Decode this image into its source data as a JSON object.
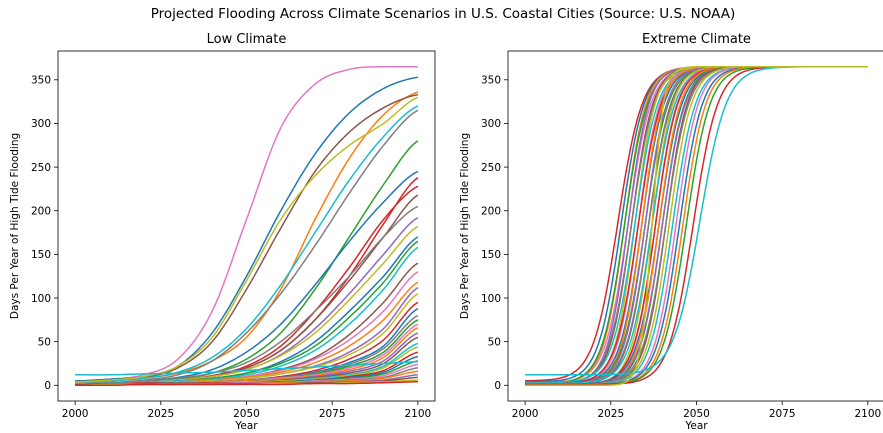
{
  "suptitle": "Projected Flooding Across Climate Scenarios in U.S. Coastal Cities (Source: U.S. NOAA)",
  "chart_data": [
    {
      "type": "line",
      "title": "Low Climate",
      "xlabel": "Year",
      "ylabel": "Days Per Year of High Tide Flooding",
      "xlim": [
        1995,
        2105
      ],
      "ylim": [
        -18,
        383
      ],
      "xticks": [
        2000,
        2025,
        2050,
        2075,
        2100
      ],
      "yticks": [
        0,
        50,
        100,
        150,
        200,
        250,
        300,
        350
      ],
      "grid": false,
      "legend": "none",
      "x": [
        2000,
        2010,
        2020,
        2030,
        2040,
        2050,
        2060,
        2070,
        2080,
        2090,
        2100
      ],
      "series": [
        {
          "color": "#e377c2",
          "values": [
            5,
            7,
            12,
            30,
            85,
            190,
            295,
            345,
            362,
            365,
            365
          ]
        },
        {
          "color": "#1f77b4",
          "values": [
            5,
            7,
            10,
            22,
            60,
            125,
            200,
            265,
            312,
            340,
            353
          ]
        },
        {
          "color": "#ff7f0e",
          "values": [
            3,
            5,
            8,
            14,
            28,
            55,
            110,
            190,
            260,
            310,
            336
          ]
        },
        {
          "color": "#8c564b",
          "values": [
            4,
            6,
            9,
            20,
            50,
            110,
            180,
            245,
            290,
            318,
            333
          ]
        },
        {
          "color": "#17becf",
          "values": [
            3,
            5,
            8,
            15,
            32,
            65,
            115,
            175,
            235,
            285,
            320
          ]
        },
        {
          "color": "#7f7f7f",
          "values": [
            2,
            3,
            6,
            12,
            28,
            60,
            105,
            160,
            220,
            275,
            315
          ]
        },
        {
          "color": "#2ca02c",
          "values": [
            2,
            3,
            4,
            7,
            14,
            30,
            60,
            110,
            170,
            230,
            280
          ]
        },
        {
          "color": "#bcbd22",
          "values": [
            4,
            6,
            10,
            22,
            55,
            120,
            190,
            240,
            275,
            300,
            330
          ]
        },
        {
          "color": "#1f77b4",
          "values": [
            2,
            3,
            5,
            9,
            18,
            38,
            70,
            115,
            165,
            210,
            245
          ]
        },
        {
          "color": "#d62728",
          "values": [
            2,
            3,
            4,
            6,
            10,
            20,
            40,
            75,
            125,
            185,
            238
          ]
        },
        {
          "color": "#d62728",
          "values": [
            2,
            3,
            4,
            6,
            11,
            22,
            45,
            85,
            135,
            190,
            228
          ]
        },
        {
          "color": "#8c564b",
          "values": [
            2,
            3,
            4,
            6,
            10,
            20,
            40,
            75,
            120,
            170,
            218
          ]
        },
        {
          "color": "#7f7f7f",
          "values": [
            2,
            3,
            5,
            8,
            14,
            26,
            50,
            85,
            125,
            170,
            205
          ]
        },
        {
          "color": "#9467bd",
          "values": [
            2,
            3,
            4,
            6,
            10,
            18,
            35,
            65,
            105,
            150,
            192
          ]
        },
        {
          "color": "#bcbd22",
          "values": [
            2,
            3,
            4,
            6,
            10,
            18,
            34,
            60,
            98,
            140,
            182
          ]
        },
        {
          "color": "#1f77b4",
          "values": [
            2,
            3,
            4,
            5,
            8,
            14,
            27,
            50,
            85,
            125,
            170
          ]
        },
        {
          "color": "#2ca02c",
          "values": [
            2,
            3,
            4,
            5,
            8,
            14,
            25,
            45,
            78,
            118,
            165
          ]
        },
        {
          "color": "#17becf",
          "values": [
            2,
            3,
            4,
            5,
            7,
            12,
            22,
            40,
            70,
            110,
            158
          ]
        },
        {
          "color": "#8c564b",
          "values": [
            2,
            2,
            3,
            4,
            6,
            10,
            18,
            32,
            58,
            95,
            140
          ]
        },
        {
          "color": "#e377c2",
          "values": [
            2,
            2,
            3,
            4,
            6,
            10,
            17,
            30,
            52,
            85,
            130
          ]
        },
        {
          "color": "#ff7f0e",
          "values": [
            2,
            2,
            3,
            4,
            6,
            9,
            15,
            26,
            45,
            75,
            118
          ]
        },
        {
          "color": "#9467bd",
          "values": [
            2,
            2,
            3,
            4,
            5,
            8,
            13,
            22,
            38,
            65,
            112
          ]
        },
        {
          "color": "#bcbd22",
          "values": [
            2,
            2,
            3,
            4,
            5,
            8,
            13,
            21,
            35,
            60,
            105
          ]
        },
        {
          "color": "#d62728",
          "values": [
            1,
            2,
            3,
            3,
            4,
            6,
            10,
            17,
            30,
            52,
            95
          ]
        },
        {
          "color": "#1f77b4",
          "values": [
            1,
            2,
            2,
            3,
            4,
            6,
            9,
            15,
            26,
            45,
            88
          ]
        },
        {
          "color": "#7f7f7f",
          "values": [
            1,
            2,
            2,
            3,
            4,
            6,
            9,
            14,
            24,
            42,
            80
          ]
        },
        {
          "color": "#2ca02c",
          "values": [
            1,
            2,
            2,
            3,
            4,
            5,
            8,
            13,
            22,
            38,
            75
          ]
        },
        {
          "color": "#e377c2",
          "values": [
            1,
            2,
            2,
            3,
            4,
            5,
            8,
            12,
            20,
            35,
            70
          ]
        },
        {
          "color": "#ff7f0e",
          "values": [
            1,
            2,
            2,
            3,
            4,
            5,
            7,
            11,
            18,
            32,
            66
          ]
        },
        {
          "color": "#9467bd",
          "values": [
            1,
            2,
            2,
            3,
            3,
            4,
            6,
            10,
            16,
            28,
            60
          ]
        },
        {
          "color": "#8c564b",
          "values": [
            1,
            2,
            2,
            3,
            3,
            4,
            6,
            9,
            14,
            25,
            55
          ]
        },
        {
          "color": "#17becf",
          "values": [
            1,
            1,
            2,
            2,
            3,
            4,
            5,
            8,
            12,
            22,
            48
          ]
        },
        {
          "color": "#bcbd22",
          "values": [
            1,
            1,
            2,
            2,
            3,
            4,
            5,
            7,
            11,
            20,
            44
          ]
        },
        {
          "color": "#d62728",
          "values": [
            1,
            1,
            2,
            2,
            3,
            3,
            4,
            6,
            10,
            17,
            38
          ]
        },
        {
          "color": "#1f77b4",
          "values": [
            1,
            1,
            2,
            2,
            2,
            3,
            4,
            6,
            9,
            15,
            33
          ]
        },
        {
          "color": "#2ca02c",
          "values": [
            1,
            1,
            1,
            2,
            2,
            3,
            4,
            5,
            8,
            13,
            28
          ]
        },
        {
          "color": "#e377c2",
          "values": [
            1,
            1,
            1,
            2,
            2,
            3,
            3,
            5,
            7,
            11,
            24
          ]
        },
        {
          "color": "#7f7f7f",
          "values": [
            1,
            1,
            1,
            2,
            2,
            2,
            3,
            4,
            6,
            9,
            20
          ]
        },
        {
          "color": "#ff7f0e",
          "values": [
            1,
            1,
            1,
            1,
            2,
            2,
            3,
            4,
            5,
            8,
            16
          ]
        },
        {
          "color": "#9467bd",
          "values": [
            1,
            1,
            1,
            1,
            2,
            2,
            2,
            3,
            4,
            6,
            12
          ]
        },
        {
          "color": "#17becf",
          "values": [
            12,
            12,
            13,
            14,
            15,
            17,
            19,
            21,
            23,
            25,
            27
          ]
        },
        {
          "color": "#8c564b",
          "values": [
            1,
            1,
            1,
            1,
            1,
            2,
            2,
            3,
            3,
            5,
            9
          ]
        },
        {
          "color": "#bcbd22",
          "values": [
            0,
            1,
            1,
            1,
            1,
            1,
            2,
            2,
            3,
            4,
            6
          ]
        },
        {
          "color": "#d62728",
          "values": [
            0,
            0,
            1,
            1,
            1,
            1,
            1,
            2,
            2,
            3,
            4
          ]
        }
      ]
    },
    {
      "type": "line",
      "title": "Extreme Climate",
      "xlabel": "Year",
      "ylabel": "Days Per Year of High Tide Flooding",
      "xlim": [
        1995,
        2105
      ],
      "ylim": [
        -18,
        383
      ],
      "xticks": [
        2000,
        2025,
        2050,
        2075,
        2100
      ],
      "yticks": [
        0,
        50,
        100,
        150,
        200,
        250,
        300,
        350
      ],
      "grid": false,
      "legend": "none",
      "x_range": [
        2000,
        2100
      ],
      "series": [
        {
          "color": "#e377c2",
          "mid": 2030,
          "k": 0.3,
          "base": 3
        },
        {
          "color": "#d62728",
          "mid": 2027,
          "k": 0.28,
          "base": 5
        },
        {
          "color": "#1f77b4",
          "mid": 2028,
          "k": 0.3,
          "base": 4
        },
        {
          "color": "#ff7f0e",
          "mid": 2029,
          "k": 0.32,
          "base": 3
        },
        {
          "color": "#2ca02c",
          "mid": 2029,
          "k": 0.3,
          "base": 2
        },
        {
          "color": "#9467bd",
          "mid": 2030,
          "k": 0.33,
          "base": 2
        },
        {
          "color": "#8c564b",
          "mid": 2031,
          "k": 0.32,
          "base": 3
        },
        {
          "color": "#7f7f7f",
          "mid": 2031,
          "k": 0.3,
          "base": 2
        },
        {
          "color": "#bcbd22",
          "mid": 2032,
          "k": 0.34,
          "base": 2
        },
        {
          "color": "#17becf",
          "mid": 2032,
          "k": 0.3,
          "base": 3
        },
        {
          "color": "#e377c2",
          "mid": 2033,
          "k": 0.32,
          "base": 2
        },
        {
          "color": "#d62728",
          "mid": 2033,
          "k": 0.3,
          "base": 2
        },
        {
          "color": "#1f77b4",
          "mid": 2034,
          "k": 0.31,
          "base": 2
        },
        {
          "color": "#ff7f0e",
          "mid": 2034,
          "k": 0.33,
          "base": 2
        },
        {
          "color": "#2ca02c",
          "mid": 2035,
          "k": 0.3,
          "base": 1
        },
        {
          "color": "#9467bd",
          "mid": 2035,
          "k": 0.32,
          "base": 2
        },
        {
          "color": "#8c564b",
          "mid": 2036,
          "k": 0.31,
          "base": 1
        },
        {
          "color": "#7f7f7f",
          "mid": 2036,
          "k": 0.3,
          "base": 1
        },
        {
          "color": "#bcbd22",
          "mid": 2037,
          "k": 0.33,
          "base": 1
        },
        {
          "color": "#17becf",
          "mid": 2037,
          "k": 0.3,
          "base": 2
        },
        {
          "color": "#e377c2",
          "mid": 2038,
          "k": 0.32,
          "base": 1
        },
        {
          "color": "#d62728",
          "mid": 2038,
          "k": 0.31,
          "base": 1
        },
        {
          "color": "#1f77b4",
          "mid": 2039,
          "k": 0.3,
          "base": 1
        },
        {
          "color": "#ff7f0e",
          "mid": 2039,
          "k": 0.32,
          "base": 1
        },
        {
          "color": "#2ca02c",
          "mid": 2040,
          "k": 0.31,
          "base": 1
        },
        {
          "color": "#9467bd",
          "mid": 2040,
          "k": 0.3,
          "base": 1
        },
        {
          "color": "#8c564b",
          "mid": 2041,
          "k": 0.32,
          "base": 1
        },
        {
          "color": "#7f7f7f",
          "mid": 2041,
          "k": 0.3,
          "base": 1
        },
        {
          "color": "#bcbd22",
          "mid": 2042,
          "k": 0.31,
          "base": 1
        },
        {
          "color": "#17becf",
          "mid": 2043,
          "k": 0.3,
          "base": 1
        },
        {
          "color": "#e377c2",
          "mid": 2044,
          "k": 0.31,
          "base": 1
        },
        {
          "color": "#1f77b4",
          "mid": 2045,
          "k": 0.3,
          "base": 1
        },
        {
          "color": "#ff7f0e",
          "mid": 2046,
          "k": 0.3,
          "base": 1
        },
        {
          "color": "#2ca02c",
          "mid": 2047,
          "k": 0.29,
          "base": 1
        },
        {
          "color": "#d62728",
          "mid": 2049,
          "k": 0.28,
          "base": 1
        },
        {
          "color": "#17becf",
          "mid": 2051,
          "k": 0.26,
          "base": 12
        },
        {
          "color": "#bcbd22",
          "mid": 2037,
          "k": 0.6,
          "base": 0
        }
      ]
    }
  ]
}
